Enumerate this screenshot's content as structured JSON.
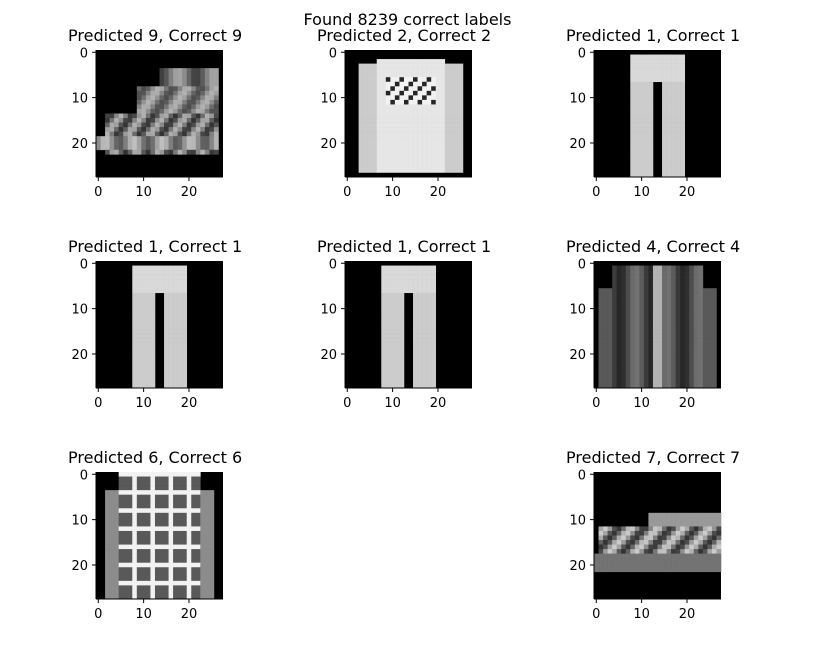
{
  "figure": {
    "suptitle": "Found 8239 correct labels"
  },
  "chart_data": [
    {
      "type": "heatmap",
      "title": "Predicted 9, Correct 9",
      "depicts": "ankle boot",
      "colormap": "gray",
      "shape": [
        28,
        28
      ],
      "xticks": [
        0,
        10,
        20
      ],
      "yticks": [
        0,
        10,
        20
      ]
    },
    {
      "type": "heatmap",
      "title": "Predicted 2, Correct 2",
      "depicts": "pullover",
      "colormap": "gray",
      "shape": [
        28,
        28
      ],
      "xticks": [
        0,
        10,
        20
      ],
      "yticks": [
        0,
        10,
        20
      ]
    },
    {
      "type": "heatmap",
      "title": "Predicted 1, Correct 1",
      "depicts": "trouser",
      "colormap": "gray",
      "shape": [
        28,
        28
      ],
      "xticks": [
        0,
        10,
        20
      ],
      "yticks": [
        0,
        10,
        20
      ]
    },
    {
      "type": "heatmap",
      "title": "Predicted 1, Correct 1",
      "depicts": "trouser",
      "colormap": "gray",
      "shape": [
        28,
        28
      ],
      "xticks": [
        0,
        10,
        20
      ],
      "yticks": [
        0,
        10,
        20
      ]
    },
    {
      "type": "heatmap",
      "title": "Predicted 1, Correct 1",
      "depicts": "trouser",
      "colormap": "gray",
      "shape": [
        28,
        28
      ],
      "xticks": [
        0,
        10,
        20
      ],
      "yticks": [
        0,
        10,
        20
      ]
    },
    {
      "type": "heatmap",
      "title": "Predicted 4, Correct 4",
      "depicts": "coat",
      "colormap": "gray",
      "shape": [
        28,
        28
      ],
      "xticks": [
        0,
        10,
        20
      ],
      "yticks": [
        0,
        10,
        20
      ]
    },
    {
      "type": "heatmap",
      "title": "Predicted 6, Correct 6",
      "depicts": "shirt",
      "colormap": "gray",
      "shape": [
        28,
        28
      ],
      "xticks": [
        0,
        10,
        20
      ],
      "yticks": [
        0,
        10,
        20
      ]
    },
    {
      "type": "heatmap",
      "title": "Predicted 7, Correct 7",
      "depicts": "sneaker",
      "colormap": "gray",
      "shape": [
        28,
        28
      ],
      "xticks": [
        0,
        10,
        20
      ],
      "yticks": [
        0,
        10,
        20
      ]
    }
  ]
}
